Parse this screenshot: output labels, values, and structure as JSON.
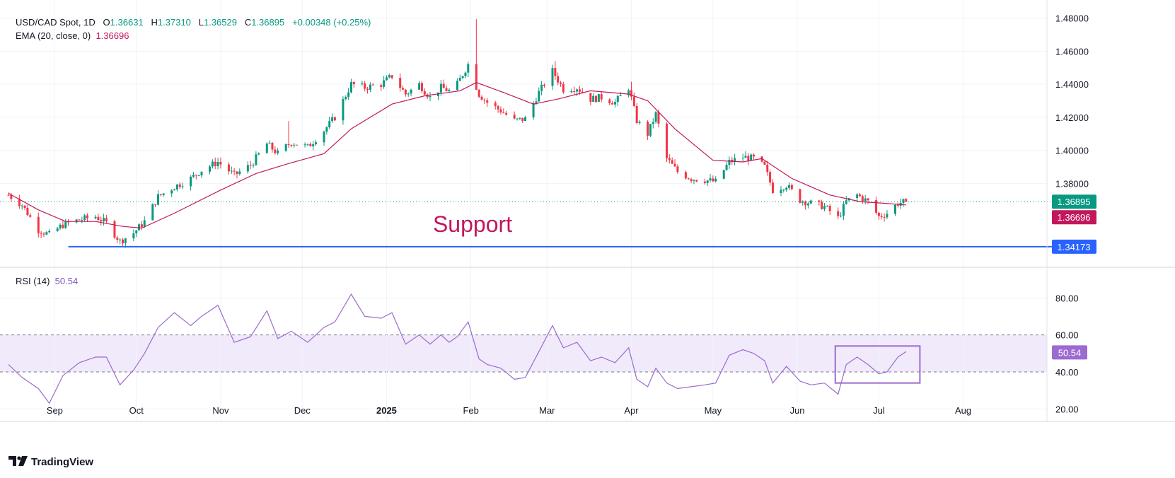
{
  "header": {
    "symbol": "USD/CAD Spot, 1D",
    "o_label": "O",
    "o_value": "1.36631",
    "h_label": "H",
    "h_value": "1.37310",
    "l_label": "L",
    "l_value": "1.36529",
    "c_label": "C",
    "c_value": "1.36895",
    "change": "+0.00348 (+0.25%)",
    "ema_label": "EMA (20, close, 0)",
    "ema_value": "1.36696",
    "rsi_label": "RSI (14)",
    "rsi_value": "50.54"
  },
  "annotations": {
    "support_text": "Support",
    "support_level": 1.34173,
    "rsi_box": {
      "start_date": "2025-06-16",
      "end_date": "2025-07-14",
      "low": 34,
      "high": 54
    }
  },
  "badges": {
    "last_price": "1.36895",
    "ema": "1.36696",
    "support": "1.34173",
    "rsi": "50.54"
  },
  "colors": {
    "up": "#089981",
    "down": "#f23645",
    "ema": "#c2185b",
    "rsi": "#9c6ad0",
    "rsi_band": "#f0eafa",
    "support": "#2962ff",
    "price_line": "#089981"
  },
  "branding": {
    "logo_text": "TradingView"
  },
  "chart_data": [
    {
      "type": "candlestick",
      "title": "USD/CAD Spot, 1D",
      "x_tick_labels": [
        "Sep",
        "Oct",
        "Nov",
        "Dec",
        "2025",
        "Feb",
        "Mar",
        "Apr",
        "May",
        "Jun",
        "Jul",
        "Aug"
      ],
      "x_tick_dates": [
        "2024-09-01",
        "2024-10-01",
        "2024-11-01",
        "2024-12-01",
        "2025-01-01",
        "2025-02-01",
        "2025-03-01",
        "2025-04-01",
        "2025-05-01",
        "2025-06-01",
        "2025-07-01",
        "2025-08-01"
      ],
      "x_range": [
        "2024-08-15",
        "2025-09-01"
      ],
      "y_tick_labels": [
        "1.48000",
        "1.46000",
        "1.44000",
        "1.42000",
        "1.40000",
        "1.38000"
      ],
      "ylim": [
        1.331,
        1.4875
      ],
      "grid": true,
      "close_anchors": [
        [
          "2024-08-15",
          1.373
        ],
        [
          "2024-08-20",
          1.367
        ],
        [
          "2024-08-26",
          1.352
        ],
        [
          "2024-08-30",
          1.349
        ],
        [
          "2024-09-04",
          1.355
        ],
        [
          "2024-09-10",
          1.358
        ],
        [
          "2024-09-16",
          1.36
        ],
        [
          "2024-09-20",
          1.356
        ],
        [
          "2024-09-25",
          1.345
        ],
        [
          "2024-09-30",
          1.35
        ],
        [
          "2024-10-04",
          1.357
        ],
        [
          "2024-10-09",
          1.372
        ],
        [
          "2024-10-15",
          1.378
        ],
        [
          "2024-10-21",
          1.383
        ],
        [
          "2024-10-25",
          1.388
        ],
        [
          "2024-10-31",
          1.393
        ],
        [
          "2024-11-06",
          1.385
        ],
        [
          "2024-11-12",
          1.391
        ],
        [
          "2024-11-18",
          1.404
        ],
        [
          "2024-11-22",
          1.398
        ],
        [
          "2024-11-27",
          1.405
        ],
        [
          "2024-12-03",
          1.402
        ],
        [
          "2024-12-09",
          1.412
        ],
        [
          "2024-12-13",
          1.42
        ],
        [
          "2024-12-19",
          1.44
        ],
        [
          "2024-12-24",
          1.438
        ],
        [
          "2024-12-30",
          1.44
        ],
        [
          "2025-01-03",
          1.445
        ],
        [
          "2025-01-08",
          1.434
        ],
        [
          "2025-01-13",
          1.44
        ],
        [
          "2025-01-17",
          1.432
        ],
        [
          "2025-01-21",
          1.438
        ],
        [
          "2025-01-24",
          1.436
        ],
        [
          "2025-01-27",
          1.44
        ],
        [
          "2025-01-31",
          1.452
        ],
        [
          "2025-02-04",
          1.434
        ],
        [
          "2025-02-07",
          1.429
        ],
        [
          "2025-02-12",
          1.424
        ],
        [
          "2025-02-17",
          1.418
        ],
        [
          "2025-02-21",
          1.419
        ],
        [
          "2025-02-26",
          1.435
        ],
        [
          "2025-03-03",
          1.448
        ],
        [
          "2025-03-07",
          1.437
        ],
        [
          "2025-03-12",
          1.438
        ],
        [
          "2025-03-17",
          1.431
        ],
        [
          "2025-03-21",
          1.432
        ],
        [
          "2025-03-26",
          1.429
        ],
        [
          "2025-03-31",
          1.438
        ],
        [
          "2025-04-03",
          1.418
        ],
        [
          "2025-04-07",
          1.41
        ],
        [
          "2025-04-10",
          1.422
        ],
        [
          "2025-04-14",
          1.395
        ],
        [
          "2025-04-18",
          1.387
        ],
        [
          "2025-04-23",
          1.383
        ],
        [
          "2025-04-28",
          1.382
        ],
        [
          "2025-05-02",
          1.381
        ],
        [
          "2025-05-07",
          1.393
        ],
        [
          "2025-05-12",
          1.396
        ],
        [
          "2025-05-16",
          1.395
        ],
        [
          "2025-05-20",
          1.39
        ],
        [
          "2025-05-23",
          1.376
        ],
        [
          "2025-05-28",
          1.379
        ],
        [
          "2025-06-02",
          1.37
        ],
        [
          "2025-06-06",
          1.368
        ],
        [
          "2025-06-11",
          1.366
        ],
        [
          "2025-06-16",
          1.359
        ],
        [
          "2025-06-19",
          1.369
        ],
        [
          "2025-06-23",
          1.373
        ],
        [
          "2025-06-27",
          1.369
        ],
        [
          "2025-07-01",
          1.36
        ],
        [
          "2025-07-04",
          1.362
        ],
        [
          "2025-07-08",
          1.368
        ],
        [
          "2025-07-11",
          1.369
        ]
      ],
      "ema_anchors": [
        [
          "2024-08-15",
          1.374
        ],
        [
          "2024-08-26",
          1.364
        ],
        [
          "2024-09-05",
          1.357
        ],
        [
          "2024-09-16",
          1.357
        ],
        [
          "2024-09-26",
          1.354
        ],
        [
          "2024-10-03",
          1.353
        ],
        [
          "2024-10-15",
          1.362
        ],
        [
          "2024-11-01",
          1.376
        ],
        [
          "2024-11-14",
          1.386
        ],
        [
          "2024-11-26",
          1.392
        ],
        [
          "2024-12-09",
          1.398
        ],
        [
          "2024-12-19",
          1.413
        ],
        [
          "2025-01-03",
          1.428
        ],
        [
          "2025-01-15",
          1.433
        ],
        [
          "2025-01-28",
          1.436
        ],
        [
          "2025-02-03",
          1.441
        ],
        [
          "2025-02-13",
          1.435
        ],
        [
          "2025-02-24",
          1.428
        ],
        [
          "2025-03-05",
          1.431
        ],
        [
          "2025-03-17",
          1.436
        ],
        [
          "2025-03-31",
          1.434
        ],
        [
          "2025-04-07",
          1.43
        ],
        [
          "2025-04-17",
          1.413
        ],
        [
          "2025-05-01",
          1.394
        ],
        [
          "2025-05-12",
          1.393
        ],
        [
          "2025-05-19",
          1.395
        ],
        [
          "2025-05-30",
          1.383
        ],
        [
          "2025-06-13",
          1.373
        ],
        [
          "2025-06-24",
          1.369
        ],
        [
          "2025-07-03",
          1.368
        ],
        [
          "2025-07-11",
          1.367
        ]
      ]
    },
    {
      "type": "line",
      "title": "RSI (14)",
      "y_tick_labels": [
        "80.00",
        "60.00",
        "40.00",
        "20.00"
      ],
      "ylim": [
        14,
        95
      ],
      "band": [
        40,
        60
      ],
      "anchors": [
        [
          "2024-08-15",
          44
        ],
        [
          "2024-08-20",
          37
        ],
        [
          "2024-08-26",
          31
        ],
        [
          "2024-08-30",
          23
        ],
        [
          "2024-09-04",
          38
        ],
        [
          "2024-09-10",
          45
        ],
        [
          "2024-09-16",
          48
        ],
        [
          "2024-09-20",
          48
        ],
        [
          "2024-09-25",
          33
        ],
        [
          "2024-09-30",
          41
        ],
        [
          "2024-10-04",
          50
        ],
        [
          "2024-10-09",
          64
        ],
        [
          "2024-10-15",
          72
        ],
        [
          "2024-10-21",
          65
        ],
        [
          "2024-10-25",
          70
        ],
        [
          "2024-10-31",
          76
        ],
        [
          "2024-11-06",
          56
        ],
        [
          "2024-11-12",
          59
        ],
        [
          "2024-11-18",
          73
        ],
        [
          "2024-11-22",
          58
        ],
        [
          "2024-11-27",
          62
        ],
        [
          "2024-12-03",
          56
        ],
        [
          "2024-12-09",
          64
        ],
        [
          "2024-12-13",
          67
        ],
        [
          "2024-12-19",
          82
        ],
        [
          "2024-12-24",
          70
        ],
        [
          "2024-12-30",
          69
        ],
        [
          "2025-01-03",
          72
        ],
        [
          "2025-01-08",
          55
        ],
        [
          "2025-01-13",
          60
        ],
        [
          "2025-01-17",
          55
        ],
        [
          "2025-01-21",
          60
        ],
        [
          "2025-01-24",
          56
        ],
        [
          "2025-01-27",
          59
        ],
        [
          "2025-01-31",
          67
        ],
        [
          "2025-02-04",
          47
        ],
        [
          "2025-02-07",
          44
        ],
        [
          "2025-02-12",
          42
        ],
        [
          "2025-02-17",
          36
        ],
        [
          "2025-02-21",
          37
        ],
        [
          "2025-02-26",
          51
        ],
        [
          "2025-03-03",
          65
        ],
        [
          "2025-03-07",
          53
        ],
        [
          "2025-03-12",
          56
        ],
        [
          "2025-03-17",
          46
        ],
        [
          "2025-03-21",
          48
        ],
        [
          "2025-03-26",
          45
        ],
        [
          "2025-03-31",
          53
        ],
        [
          "2025-04-03",
          36
        ],
        [
          "2025-04-07",
          32
        ],
        [
          "2025-04-10",
          42
        ],
        [
          "2025-04-14",
          34
        ],
        [
          "2025-04-18",
          31
        ],
        [
          "2025-04-23",
          32
        ],
        [
          "2025-04-28",
          33
        ],
        [
          "2025-05-02",
          34
        ],
        [
          "2025-05-07",
          49
        ],
        [
          "2025-05-12",
          52
        ],
        [
          "2025-05-16",
          50
        ],
        [
          "2025-05-20",
          46
        ],
        [
          "2025-05-23",
          34
        ],
        [
          "2025-05-28",
          43
        ],
        [
          "2025-06-02",
          35
        ],
        [
          "2025-06-06",
          33
        ],
        [
          "2025-06-11",
          34
        ],
        [
          "2025-06-16",
          28
        ],
        [
          "2025-06-19",
          44
        ],
        [
          "2025-06-23",
          48
        ],
        [
          "2025-06-27",
          44
        ],
        [
          "2025-07-01",
          39
        ],
        [
          "2025-07-04",
          40
        ],
        [
          "2025-07-08",
          48
        ],
        [
          "2025-07-11",
          51
        ]
      ]
    }
  ]
}
